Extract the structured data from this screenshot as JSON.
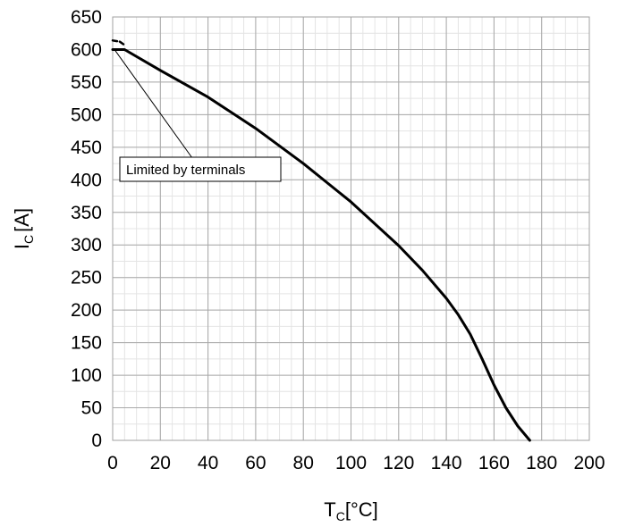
{
  "chart_data": {
    "type": "line",
    "xlabel": {
      "main": "T",
      "sub": "C",
      "unit": "[°C]"
    },
    "ylabel": {
      "main": "I",
      "sub": "C",
      "unit": "[A]"
    },
    "xlim": [
      0,
      200
    ],
    "ylim": [
      0,
      650
    ],
    "x_ticks": [
      0,
      20,
      40,
      60,
      80,
      100,
      120,
      140,
      160,
      180,
      200
    ],
    "y_ticks": [
      0,
      50,
      100,
      150,
      200,
      250,
      300,
      350,
      400,
      450,
      500,
      550,
      600,
      650
    ],
    "x_minor_step": 5,
    "y_minor_step": 25,
    "grid": true,
    "series": [
      {
        "style": "solid",
        "points": [
          [
            0,
            600
          ],
          [
            5,
            600
          ],
          [
            20,
            568
          ],
          [
            40,
            527
          ],
          [
            60,
            479
          ],
          [
            80,
            425
          ],
          [
            100,
            366
          ],
          [
            120,
            299
          ],
          [
            130,
            261
          ],
          [
            140,
            218
          ],
          [
            145,
            193
          ],
          [
            150,
            163
          ],
          [
            155,
            125
          ],
          [
            160,
            85
          ],
          [
            165,
            50
          ],
          [
            170,
            22
          ],
          [
            175,
            0
          ]
        ]
      },
      {
        "style": "dashed",
        "points": [
          [
            0,
            614
          ],
          [
            3,
            612
          ],
          [
            5,
            607
          ]
        ]
      }
    ],
    "annotation": {
      "text": "Limited by terminals",
      "pointer_from": [
        0,
        600
      ],
      "pointer_to": [
        37,
        415
      ]
    }
  }
}
